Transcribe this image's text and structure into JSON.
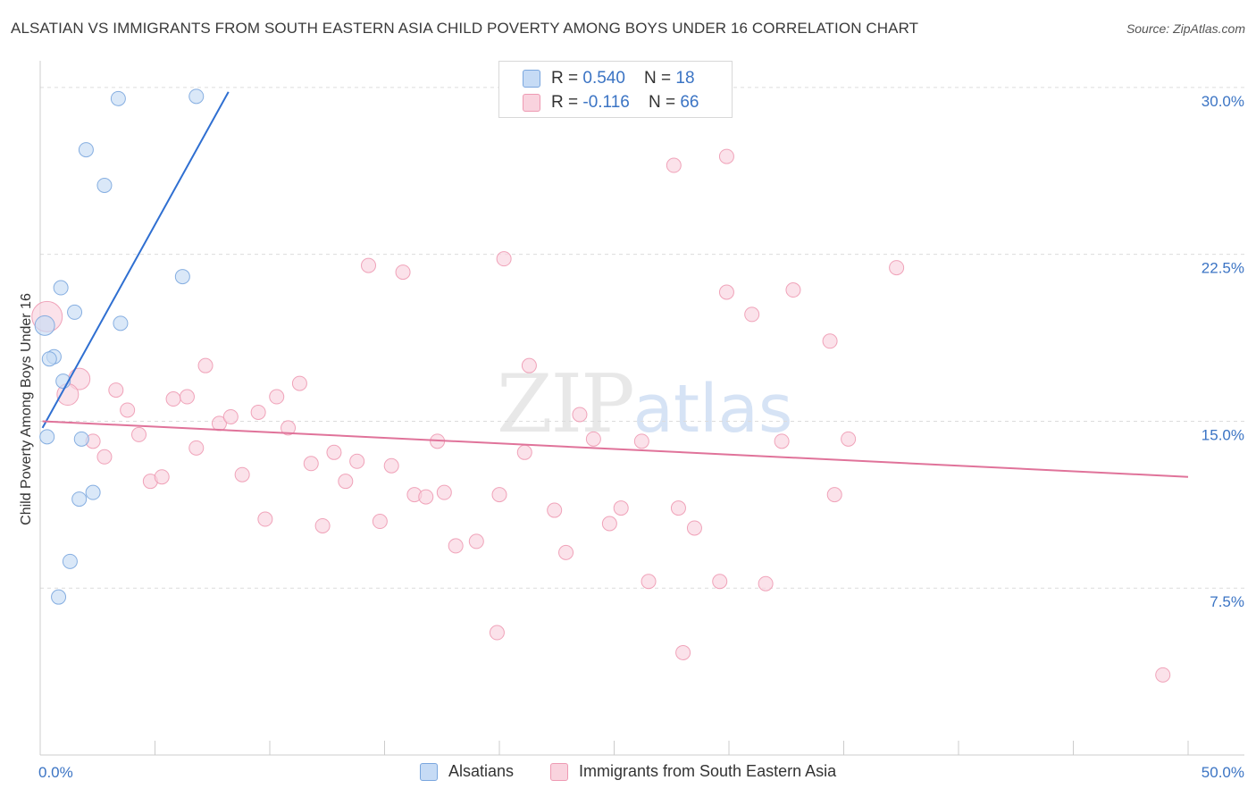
{
  "header": {
    "title": "ALSATIAN VS IMMIGRANTS FROM SOUTH EASTERN ASIA CHILD POVERTY AMONG BOYS UNDER 16 CORRELATION CHART",
    "source": "Source: ZipAtlas.com"
  },
  "watermark": {
    "zip": "ZIP",
    "atlas": "atlas"
  },
  "legend": {
    "rows": [
      {
        "r_label": "R = ",
        "r_value": "0.540",
        "n_label": "N = ",
        "n_value": "18",
        "color": "#aecbf0",
        "border": "#7aa6de"
      },
      {
        "r_label": "R = ",
        "r_value": "-0.116",
        "n_label": "N = ",
        "n_value": "66",
        "color": "#f9c8d6",
        "border": "#ee9ab3"
      }
    ]
  },
  "bottom_legend": {
    "series1": "Alsatians",
    "series2": "Immigrants from South Eastern Asia"
  },
  "chart_data": {
    "type": "scatter",
    "title": "ALSATIAN VS IMMIGRANTS FROM SOUTH EASTERN ASIA CHILD POVERTY AMONG BOYS UNDER 16 CORRELATION CHART",
    "xlabel": "",
    "ylabel": "Child Poverty Among Boys Under 16",
    "xlim": [
      0,
      50
    ],
    "ylim": [
      0,
      31.2
    ],
    "x_tick_labels": [
      "0.0%",
      "50.0%"
    ],
    "y_ticks": [
      7.5,
      15,
      22.5,
      30
    ],
    "y_tick_labels": [
      "7.5%",
      "15.0%",
      "22.5%",
      "30.0%"
    ],
    "grid": true,
    "series": [
      {
        "name": "Alsatians",
        "color": "#7aa6de",
        "fill": "#c6dbf5",
        "line_color": "#2f6fd1",
        "trend": {
          "x": [
            0.1,
            8.2
          ],
          "y": [
            14.7,
            29.8
          ]
        },
        "points": [
          {
            "x": 3.4,
            "y": 29.5
          },
          {
            "x": 6.8,
            "y": 29.6
          },
          {
            "x": 2.0,
            "y": 27.2
          },
          {
            "x": 2.8,
            "y": 25.6
          },
          {
            "x": 6.2,
            "y": 21.5
          },
          {
            "x": 0.9,
            "y": 21.0
          },
          {
            "x": 1.5,
            "y": 19.9
          },
          {
            "x": 3.5,
            "y": 19.4
          },
          {
            "x": 0.2,
            "y": 19.3
          },
          {
            "x": 0.6,
            "y": 17.9
          },
          {
            "x": 0.4,
            "y": 17.8
          },
          {
            "x": 1.0,
            "y": 16.8
          },
          {
            "x": 0.3,
            "y": 14.3
          },
          {
            "x": 1.8,
            "y": 14.2
          },
          {
            "x": 2.3,
            "y": 11.8
          },
          {
            "x": 1.7,
            "y": 11.5
          },
          {
            "x": 1.3,
            "y": 8.7
          },
          {
            "x": 0.8,
            "y": 7.1
          }
        ]
      },
      {
        "name": "Immigrants from South Eastern Asia",
        "color": "#ee9ab3",
        "fill": "#f9d3de",
        "line_color": "#e0739a",
        "trend": {
          "x": [
            0.1,
            50
          ],
          "y": [
            15.0,
            12.5
          ]
        },
        "points": [
          {
            "x": 0.3,
            "y": 19.7
          },
          {
            "x": 1.7,
            "y": 16.9
          },
          {
            "x": 1.2,
            "y": 16.2
          },
          {
            "x": 2.3,
            "y": 14.1
          },
          {
            "x": 2.8,
            "y": 13.4
          },
          {
            "x": 3.3,
            "y": 16.4
          },
          {
            "x": 3.8,
            "y": 15.5
          },
          {
            "x": 4.3,
            "y": 14.4
          },
          {
            "x": 4.8,
            "y": 12.3
          },
          {
            "x": 5.3,
            "y": 12.5
          },
          {
            "x": 5.8,
            "y": 16.0
          },
          {
            "x": 6.4,
            "y": 16.1
          },
          {
            "x": 6.8,
            "y": 13.8
          },
          {
            "x": 7.2,
            "y": 17.5
          },
          {
            "x": 7.8,
            "y": 14.9
          },
          {
            "x": 8.3,
            "y": 15.2
          },
          {
            "x": 8.8,
            "y": 12.6
          },
          {
            "x": 9.5,
            "y": 15.4
          },
          {
            "x": 9.8,
            "y": 10.6
          },
          {
            "x": 10.3,
            "y": 16.1
          },
          {
            "x": 10.8,
            "y": 14.7
          },
          {
            "x": 11.3,
            "y": 16.7
          },
          {
            "x": 11.8,
            "y": 13.1
          },
          {
            "x": 12.3,
            "y": 10.3
          },
          {
            "x": 12.8,
            "y": 13.6
          },
          {
            "x": 13.3,
            "y": 12.3
          },
          {
            "x": 13.8,
            "y": 13.2
          },
          {
            "x": 14.3,
            "y": 22.0
          },
          {
            "x": 14.8,
            "y": 10.5
          },
          {
            "x": 15.3,
            "y": 13.0
          },
          {
            "x": 15.8,
            "y": 21.7
          },
          {
            "x": 16.3,
            "y": 11.7
          },
          {
            "x": 16.8,
            "y": 11.6
          },
          {
            "x": 17.3,
            "y": 14.1
          },
          {
            "x": 17.6,
            "y": 11.8
          },
          {
            "x": 18.1,
            "y": 9.4
          },
          {
            "x": 19.0,
            "y": 9.6
          },
          {
            "x": 19.9,
            "y": 5.5
          },
          {
            "x": 20.0,
            "y": 11.7
          },
          {
            "x": 20.2,
            "y": 22.3
          },
          {
            "x": 21.1,
            "y": 13.6
          },
          {
            "x": 21.3,
            "y": 17.5
          },
          {
            "x": 22.4,
            "y": 11.0
          },
          {
            "x": 22.9,
            "y": 9.1
          },
          {
            "x": 23.5,
            "y": 15.3
          },
          {
            "x": 24.1,
            "y": 14.2
          },
          {
            "x": 24.8,
            "y": 10.4
          },
          {
            "x": 25.3,
            "y": 11.1
          },
          {
            "x": 26.2,
            "y": 14.1
          },
          {
            "x": 26.5,
            "y": 7.8
          },
          {
            "x": 27.6,
            "y": 26.5
          },
          {
            "x": 27.8,
            "y": 11.1
          },
          {
            "x": 28.0,
            "y": 4.6
          },
          {
            "x": 28.5,
            "y": 10.2
          },
          {
            "x": 29.6,
            "y": 7.8
          },
          {
            "x": 29.9,
            "y": 26.9
          },
          {
            "x": 29.9,
            "y": 20.8
          },
          {
            "x": 31.0,
            "y": 19.8
          },
          {
            "x": 31.6,
            "y": 7.7
          },
          {
            "x": 32.3,
            "y": 14.1
          },
          {
            "x": 32.8,
            "y": 20.9
          },
          {
            "x": 34.4,
            "y": 18.6
          },
          {
            "x": 34.6,
            "y": 11.7
          },
          {
            "x": 35.2,
            "y": 14.2
          },
          {
            "x": 37.3,
            "y": 21.9
          },
          {
            "x": 48.9,
            "y": 3.6
          }
        ]
      }
    ]
  }
}
